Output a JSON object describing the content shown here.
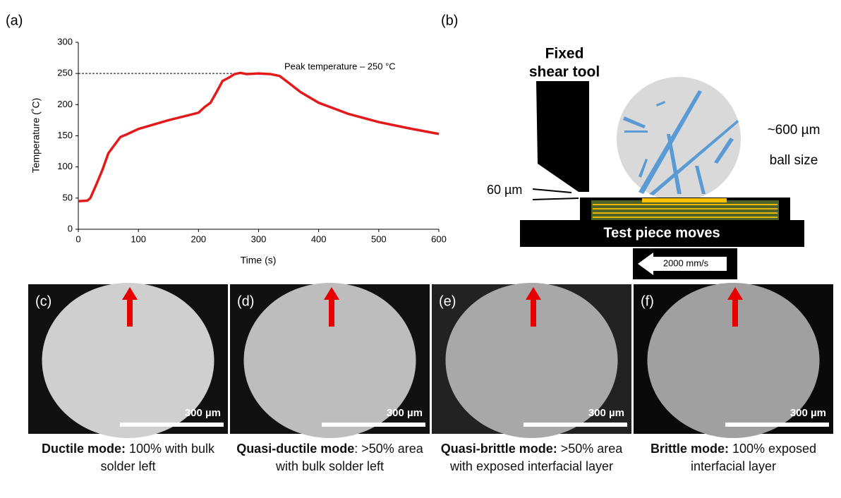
{
  "chart_data": {
    "type": "line",
    "panel_label": "(a)",
    "xlabel": "Time (s)",
    "ylabel": "Temperature (˚C)",
    "annotation": "Peak temperature – 250 °C",
    "reference_y": 250,
    "color": "#e31a1c",
    "x": [
      0,
      15,
      20,
      30,
      40,
      50,
      60,
      70,
      80,
      100,
      150,
      200,
      210,
      220,
      230,
      240,
      250,
      260,
      270,
      280,
      300,
      320,
      335,
      350,
      370,
      400,
      450,
      500,
      550,
      600
    ],
    "values": [
      45,
      46,
      50,
      72,
      95,
      122,
      135,
      148,
      152,
      161,
      175,
      187,
      196,
      203,
      220,
      238,
      243,
      249,
      251,
      249,
      250,
      249,
      246,
      235,
      220,
      203,
      185,
      172,
      162,
      153
    ],
    "xlim": [
      0,
      600
    ],
    "xticks": [
      0,
      100,
      200,
      300,
      400,
      500,
      600
    ],
    "ylim": [
      0,
      300
    ],
    "yticks": [
      0,
      50,
      100,
      150,
      200,
      250,
      300
    ]
  },
  "diagram": {
    "panel_label": "(b)",
    "tool_line1": "Fixed",
    "tool_line2": "shear tool",
    "ball_line1": "~600 µm",
    "ball_line2": "ball size",
    "gap": "60 µm",
    "base": "Test piece moves",
    "speed": "2000 mm/s"
  },
  "panels": [
    {
      "label": "(c)",
      "scale": "300 µm",
      "caption_bold": "Ductile mode:",
      "caption": " 100% with bulk solder left"
    },
    {
      "label": "(d)",
      "scale": "300 µm",
      "caption_bold": "Quasi-ductile mode",
      "caption": ": >50% area with bulk solder left"
    },
    {
      "label": "(e)",
      "scale": "300 µm",
      "caption_bold": "Quasi-brittle mode:",
      "caption": " >50% area with exposed interfacial layer"
    },
    {
      "label": "(f)",
      "scale": "300 µm",
      "caption_bold": "Brittle mode:",
      "caption": " 100% exposed interfacial layer"
    }
  ]
}
